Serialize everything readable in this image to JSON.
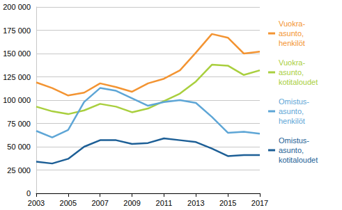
{
  "chart_data": {
    "type": "line",
    "x": [
      2003,
      2004,
      2005,
      2006,
      2007,
      2008,
      2009,
      2010,
      2011,
      2012,
      2013,
      2014,
      2015,
      2016,
      2017
    ],
    "xlim": [
      2003,
      2017
    ],
    "xticks": [
      2003,
      2005,
      2007,
      2009,
      2011,
      2013,
      2015,
      2017
    ],
    "ylim": [
      0,
      200000
    ],
    "yticks": [
      0,
      {
        "value": 25000,
        "label": "25 000"
      },
      {
        "value": 50000,
        "label": "50 000"
      },
      {
        "value": 75000,
        "label": "75 000"
      },
      {
        "value": 100000,
        "label": "100 000"
      },
      {
        "value": 125000,
        "label": "125 000"
      },
      {
        "value": 150000,
        "label": "150 000"
      },
      {
        "value": 175000,
        "label": "175 000"
      },
      {
        "value": 200000,
        "label": "200 000"
      }
    ],
    "grid": true,
    "legend": "right",
    "series": [
      {
        "name": "Vuokra-\nasunto,\nhenkilöt",
        "color": "#f39432",
        "values": [
          119000,
          113000,
          105000,
          108000,
          118000,
          114000,
          109000,
          118000,
          123000,
          132000,
          151000,
          171000,
          167000,
          150000,
          152000
        ]
      },
      {
        "name": "Vuokra-\nasunto,\nkotitaloudet",
        "color": "#a9cf3e",
        "values": [
          93000,
          88000,
          85000,
          89000,
          96000,
          93000,
          87000,
          91000,
          99000,
          107000,
          120000,
          138000,
          137000,
          127000,
          132000
        ]
      },
      {
        "name": "Omistus-\nasunto,\nhenkilöt",
        "color": "#5ea6d6",
        "values": [
          67000,
          60000,
          68000,
          98000,
          113000,
          110000,
          102000,
          94000,
          98000,
          100000,
          97000,
          82000,
          65000,
          66000,
          64000
        ]
      },
      {
        "name": "Omistus-\nasunto,\nkotitaloudet",
        "color": "#1d5f96",
        "values": [
          34000,
          32000,
          37000,
          50000,
          57000,
          57000,
          53000,
          54000,
          59000,
          57000,
          55000,
          48000,
          40000,
          41000,
          41000
        ]
      }
    ]
  }
}
